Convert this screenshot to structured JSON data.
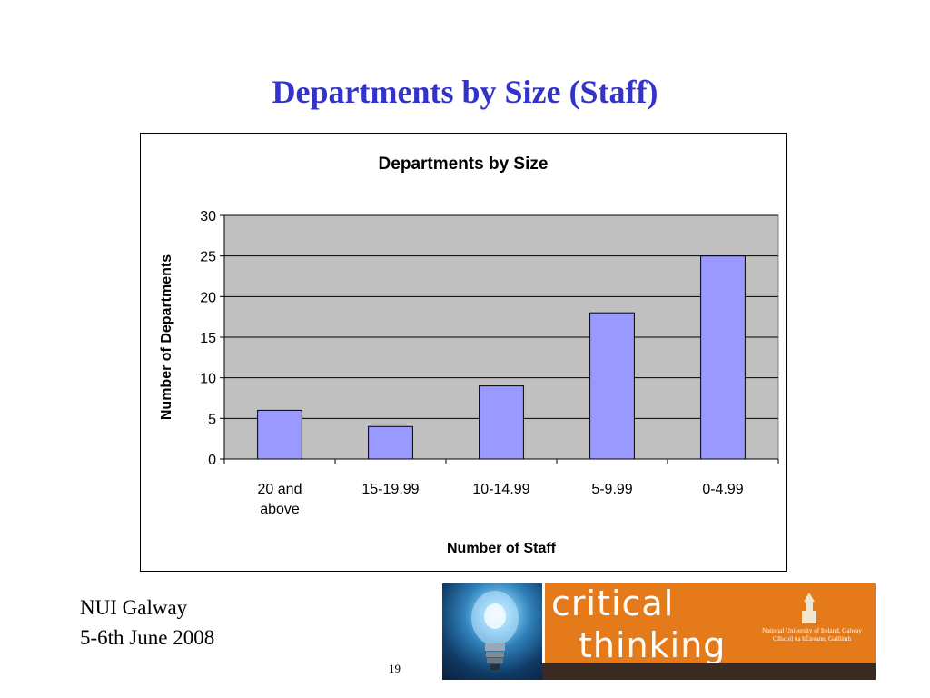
{
  "slide": {
    "title": "Departments by Size (Staff)",
    "footer_line1": "NUI Galway",
    "footer_line2": "5-6th June 2008",
    "page_number": "19"
  },
  "banner": {
    "word1": "critical",
    "word2": "thinking",
    "university_line1": "National University of Ireland, Galway",
    "university_line2": "Ollscoil na hÉireann, Gaillimh",
    "colors": {
      "background": "#e47a1a",
      "bottom_strip": "#3a2a22"
    }
  },
  "chart_data": {
    "type": "bar",
    "title": "Departments by Size",
    "xlabel": "Number of Staff",
    "ylabel": "Number of Departments",
    "categories": [
      "20 and above",
      "15-19.99",
      "10-14.99",
      "5-9.99",
      "0-4.99"
    ],
    "category_lines": [
      [
        "20 and",
        "above"
      ],
      [
        "15-19.99"
      ],
      [
        "10-14.99"
      ],
      [
        "5-9.99"
      ],
      [
        "0-4.99"
      ]
    ],
    "values": [
      6,
      4,
      9,
      18,
      25
    ],
    "ylim": [
      0,
      30
    ],
    "yticks": [
      0,
      5,
      10,
      15,
      20,
      25,
      30
    ],
    "grid": true,
    "colors": {
      "bar": "#9999ff",
      "plot_area": "#c0c0c0",
      "bar_border": "#000000"
    }
  }
}
